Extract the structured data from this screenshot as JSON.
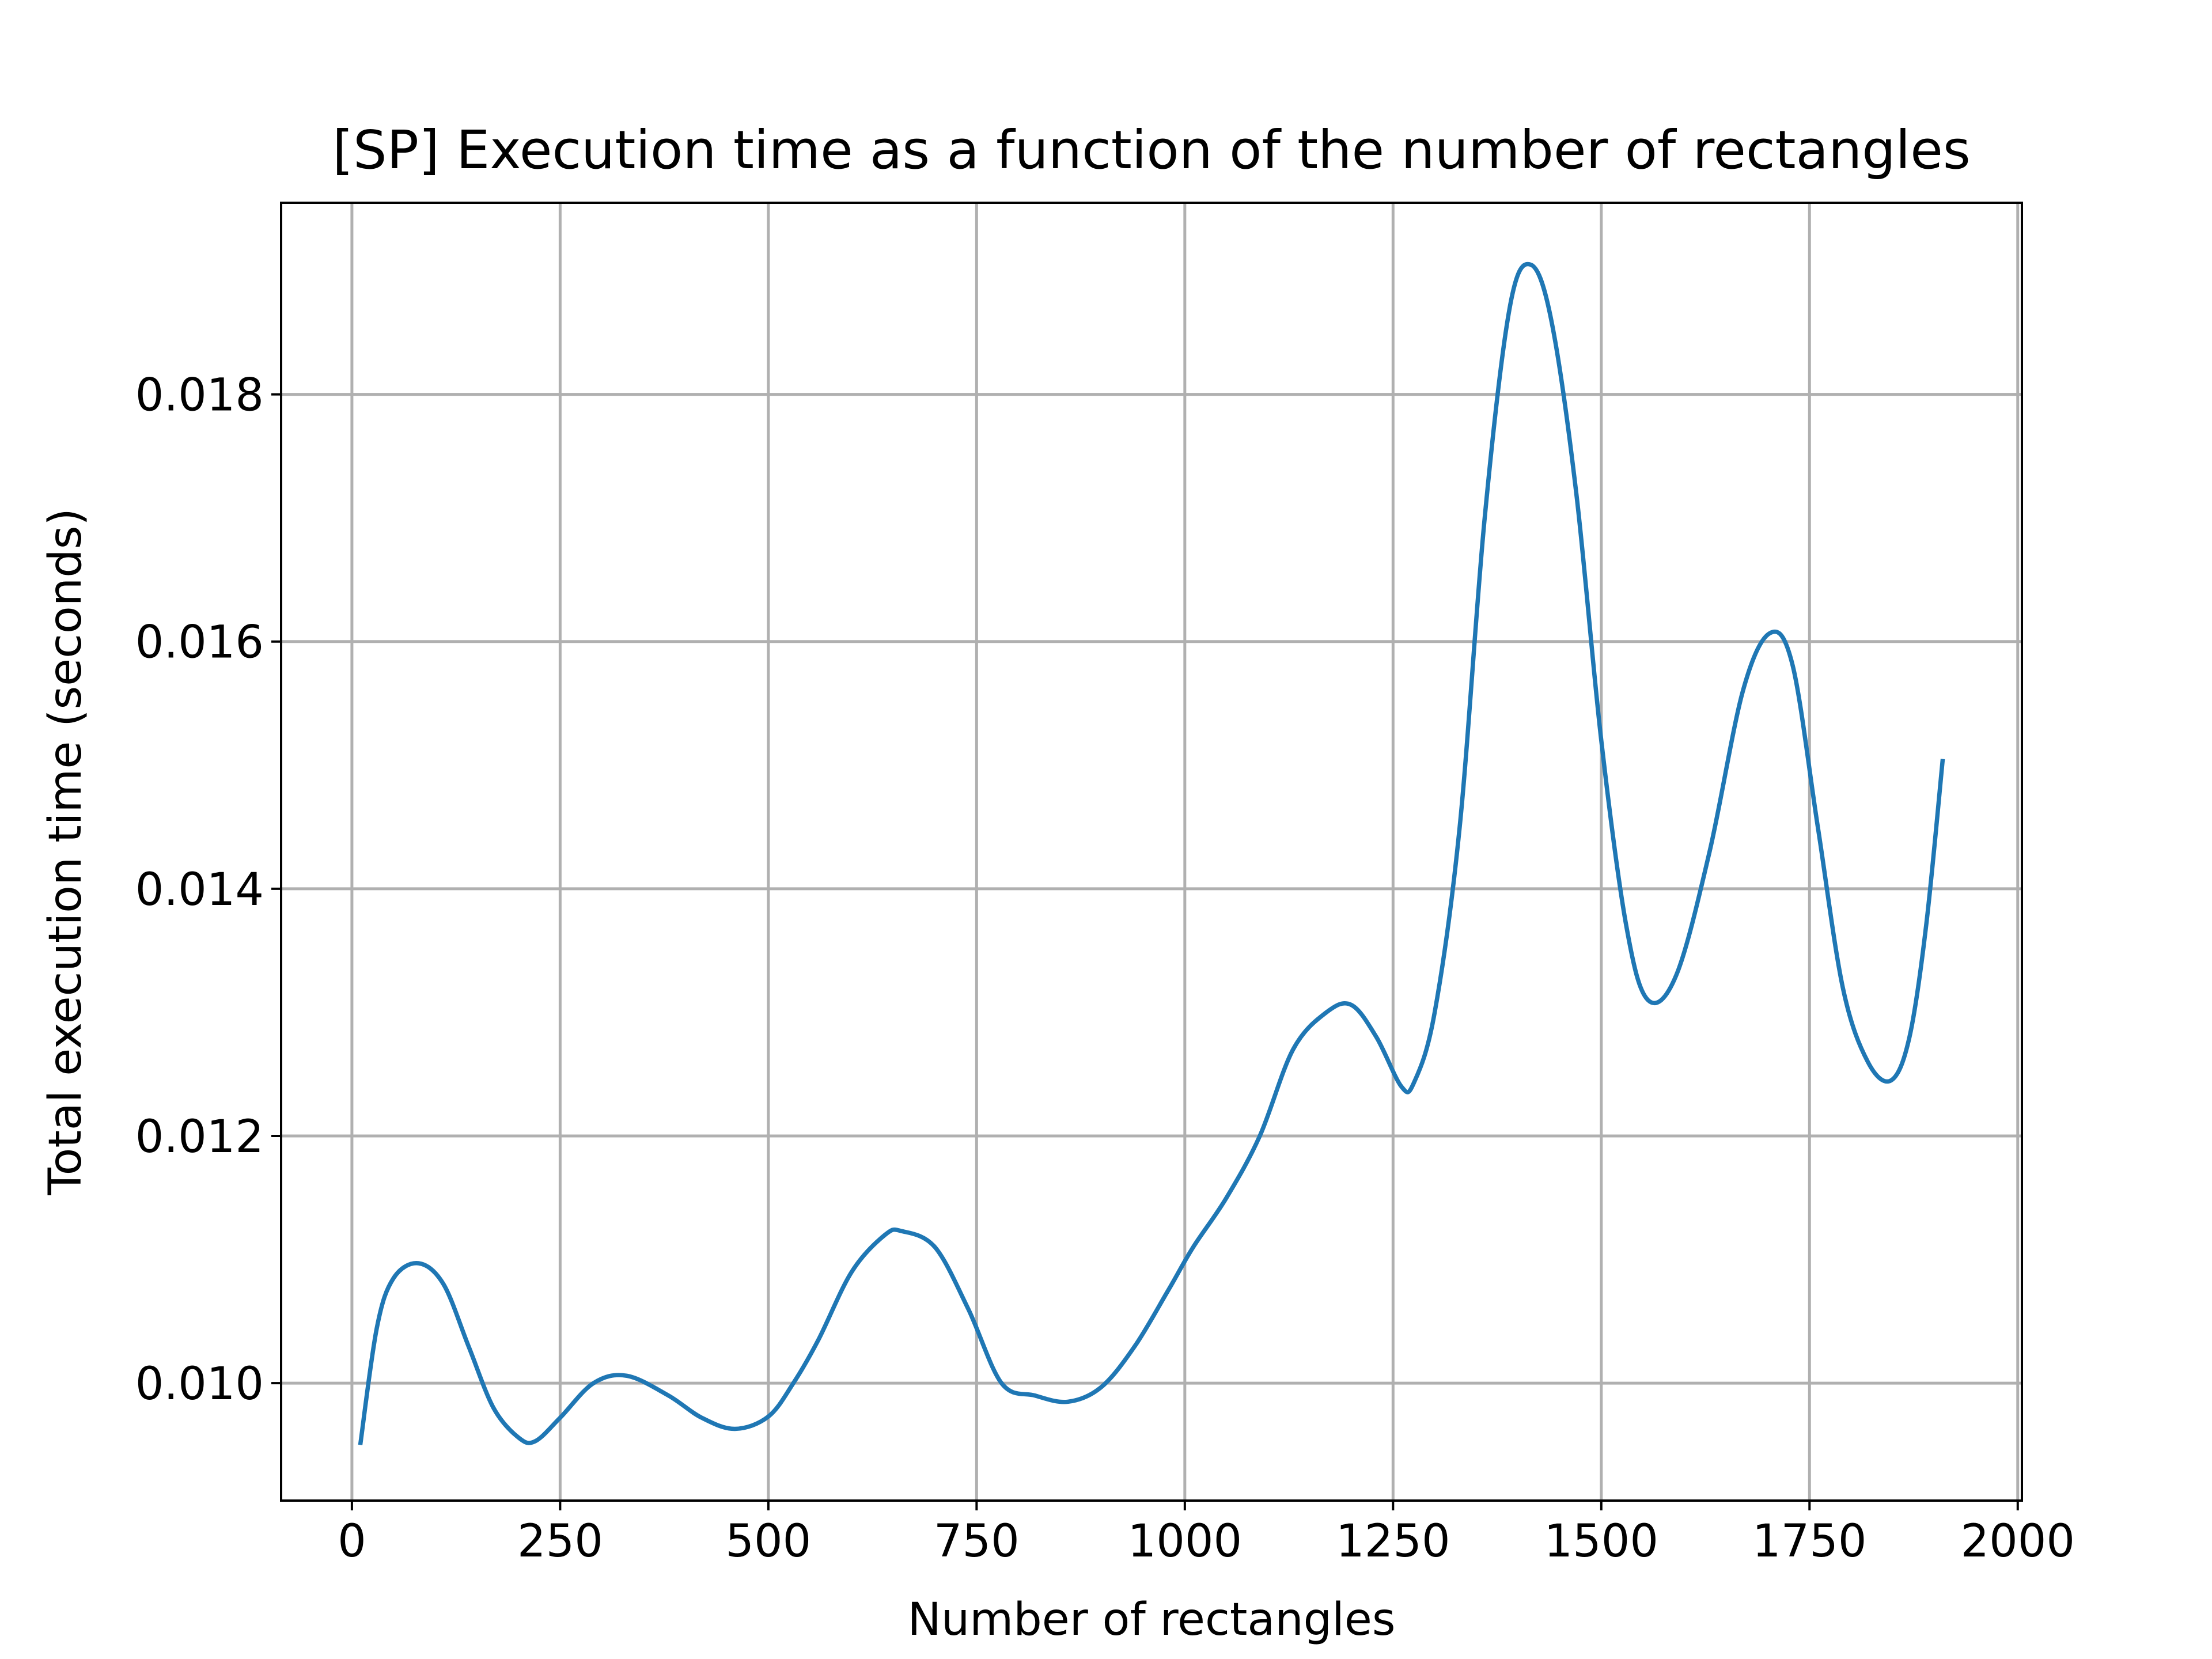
{
  "chart_data": {
    "type": "line",
    "title": "[SP] Execution time as a function of the number of rectangles",
    "xlabel": "Number of rectangles",
    "ylabel": "Total execution time (seconds)",
    "xlim": [
      -85,
      2005
    ],
    "ylim": [
      0.00905,
      0.01955
    ],
    "xticks": [
      0,
      250,
      500,
      750,
      1000,
      1250,
      1500,
      1750,
      2000
    ],
    "yticks": [
      0.01,
      0.012,
      0.014,
      0.016,
      0.018
    ],
    "xtick_labels": [
      "0",
      "250",
      "500",
      "750",
      "1000",
      "1250",
      "1500",
      "1750",
      "2000"
    ],
    "ytick_labels": [
      "0.010",
      "0.012",
      "0.014",
      "0.016",
      "0.018"
    ],
    "grid": true,
    "legend": "none",
    "series_color": "#1f77b4",
    "series": [
      {
        "x": [
          10,
          30,
          50,
          80,
          110,
          140,
          170,
          200,
          220,
          250,
          290,
          330,
          380,
          420,
          460,
          500,
          530,
          560,
          600,
          640,
          660,
          700,
          740,
          780,
          820,
          860,
          900,
          940,
          980,
          1010,
          1050,
          1090,
          1130,
          1170,
          1200,
          1230,
          1260,
          1275,
          1300,
          1330,
          1360,
          1390,
          1415,
          1440,
          1470,
          1500,
          1530,
          1556,
          1590,
          1630,
          1670,
          1703,
          1730,
          1760,
          1790,
          1820,
          1848,
          1870,
          1890,
          1910
        ],
        "y": [
          0.0095,
          0.01045,
          0.01085,
          0.01097,
          0.0108,
          0.0103,
          0.0098,
          0.00956,
          0.00953,
          0.00972,
          0.01,
          0.01006,
          0.0099,
          0.00972,
          0.00963,
          0.00973,
          0.01,
          0.01035,
          0.0109,
          0.0112,
          0.01123,
          0.0111,
          0.0106,
          0.01,
          0.0099,
          0.00985,
          0.00997,
          0.0103,
          0.01075,
          0.0111,
          0.0115,
          0.012,
          0.0127,
          0.013,
          0.01306,
          0.0128,
          0.0124,
          0.01243,
          0.013,
          0.0145,
          0.017,
          0.0187,
          0.01905,
          0.0186,
          0.0172,
          0.0152,
          0.0137,
          0.0131,
          0.0133,
          0.0143,
          0.0156,
          0.01607,
          0.0158,
          0.0145,
          0.0132,
          0.0126,
          0.01245,
          0.0128,
          0.0137,
          0.01505
        ]
      }
    ]
  }
}
